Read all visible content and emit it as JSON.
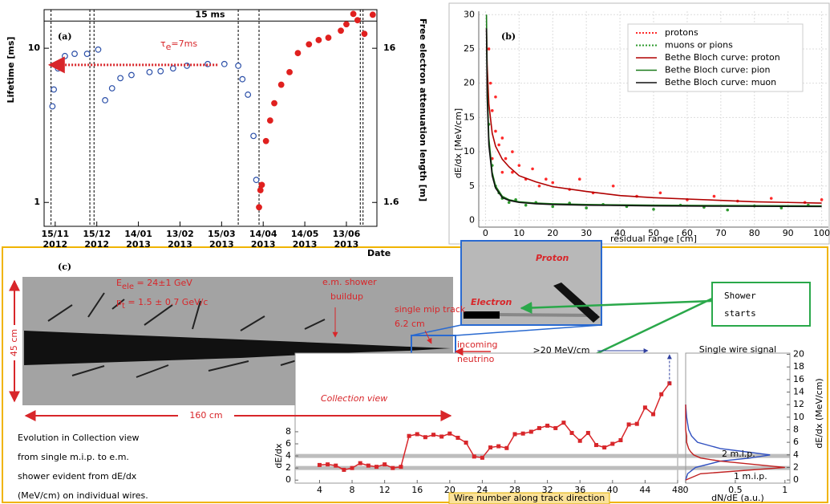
{
  "chart_data": [
    {
      "type": "scatter",
      "panel": "(a)",
      "ylabel": "Lifetime [ms]",
      "y2label": "Free electron attenuation length [m]",
      "xlabel": "Date",
      "log": true,
      "xlim": [
        -8,
        232
      ],
      "ylim": [
        0.7,
        17.8
      ],
      "y2lim": [
        1.12,
        28.5
      ],
      "xticks": [
        {
          "value": 0,
          "label": "15/11",
          "year": "2012"
        },
        {
          "value": 30,
          "label": "15/12",
          "year": "2012"
        },
        {
          "value": 60,
          "label": "14/01",
          "year": "2013"
        },
        {
          "value": 90,
          "label": "13/02",
          "year": "2013"
        },
        {
          "value": 120,
          "label": "15/03",
          "year": "2013"
        },
        {
          "value": 150,
          "label": "14/04",
          "year": "2013"
        },
        {
          "value": 180,
          "label": "14/05",
          "year": "2013"
        },
        {
          "value": 210,
          "label": "13/06",
          "year": "2013"
        }
      ],
      "yticks": [
        1,
        10
      ],
      "y2ticks": [
        1.6,
        16
      ],
      "vlines": [
        -3,
        25,
        28,
        132,
        147,
        220,
        222
      ],
      "hline": {
        "value": 15,
        "label": "15 ms"
      },
      "arrow": {
        "y": 7.8,
        "x": [
          117,
          -4
        ],
        "label": {
          "symbol": "τ",
          "sub": "e",
          "rest": "=7ms"
        }
      },
      "series": [
        {
          "color": "#2b4fa8",
          "marker": "open",
          "x": [
            -2,
            -1,
            2,
            7,
            14,
            23,
            31,
            36,
            41,
            47,
            55,
            68,
            76,
            85,
            95,
            110,
            122,
            132,
            135,
            139,
            143,
            145
          ],
          "values": [
            4.2,
            5.4,
            7.4,
            8.9,
            9.2,
            9.2,
            9.8,
            4.6,
            5.5,
            6.4,
            6.7,
            7.0,
            7.1,
            7.4,
            7.7,
            7.9,
            7.9,
            7.7,
            6.3,
            5.0,
            2.7,
            1.4
          ]
        },
        {
          "color": "#e0201f",
          "marker": "filled",
          "x": [
            147,
            148,
            149,
            152,
            155,
            158,
            163,
            169,
            175,
            183,
            190,
            197,
            206,
            210,
            215,
            218,
            223,
            229
          ],
          "values": [
            0.93,
            1.2,
            1.3,
            2.5,
            3.4,
            4.4,
            5.8,
            7.0,
            9.3,
            10.6,
            11.3,
            11.7,
            13.0,
            14.3,
            16.7,
            15.2,
            12.4,
            16.5
          ]
        }
      ]
    },
    {
      "type": "scatter",
      "panel": "(b)",
      "xlabel": "residual range [cm]",
      "ylabel": "dE/dx [MeV/cm]",
      "grid": true,
      "legend": "upper right",
      "xlim": [
        -2,
        102
      ],
      "ylim": [
        -1,
        30.5
      ],
      "xticks": [
        0,
        10,
        20,
        30,
        40,
        50,
        60,
        70,
        80,
        90,
        100
      ],
      "yticks": [
        0,
        5,
        10,
        15,
        20,
        25,
        30
      ],
      "series": [
        {
          "name": "protons",
          "color": "#ff2a2a",
          "style": "dots",
          "x": [
            1,
            1.5,
            2,
            2,
            3,
            3,
            4,
            5,
            5,
            6,
            8,
            8,
            10,
            12,
            14,
            16,
            18,
            20,
            25,
            28,
            32,
            38,
            45,
            52,
            60,
            68,
            75,
            85,
            95,
            100
          ],
          "values": [
            25,
            20,
            16,
            9,
            13,
            18,
            11,
            12,
            7,
            9,
            10,
            7,
            8,
            6,
            7.5,
            5,
            6,
            5.5,
            4.5,
            6,
            4,
            5,
            3.5,
            4,
            3,
            3.5,
            2.8,
            3.2,
            2.6,
            3
          ]
        },
        {
          "name": "muons or pions",
          "color": "#2e9a2e",
          "style": "dots",
          "x": [
            1,
            2,
            3,
            4,
            5,
            7,
            9,
            12,
            15,
            20,
            25,
            30,
            35,
            42,
            50,
            58,
            65,
            72,
            80,
            88,
            96
          ],
          "values": [
            14,
            8,
            5,
            4,
            3.2,
            2.6,
            3,
            2.2,
            2.6,
            2,
            2.5,
            1.8,
            2.3,
            2,
            1.6,
            2.2,
            1.9,
            1.5,
            2.1,
            1.8,
            2.2
          ]
        },
        {
          "name": "Bethe Bloch curve: proton",
          "color": "#b00000",
          "style": "line",
          "x": [
            0.3,
            0.5,
            1,
            2,
            3,
            5,
            7,
            10,
            15,
            20,
            30,
            40,
            50,
            60,
            70,
            80,
            90,
            100
          ],
          "values": [
            28,
            22.7,
            17,
            12.7,
            10.8,
            8.9,
            7.8,
            6.5,
            5.6,
            4.9,
            4.2,
            3.6,
            3.3,
            3.1,
            2.9,
            2.7,
            2.6,
            2.5
          ]
        },
        {
          "name": "Bethe Bloch curve: pion",
          "color": "#1a7a1a",
          "style": "line",
          "x": [
            0.3,
            0.5,
            1,
            2,
            3,
            5,
            7,
            10,
            15,
            20,
            30,
            50,
            70,
            100
          ],
          "values": [
            30,
            20,
            12,
            7,
            5,
            3.5,
            3,
            2.7,
            2.5,
            2.4,
            2.3,
            2.2,
            2.15,
            2.1
          ]
        },
        {
          "name": "Bethe Bloch curve: muon",
          "color": "#111111",
          "style": "line",
          "x": [
            0.3,
            0.5,
            1,
            2,
            3,
            5,
            7,
            10,
            15,
            20,
            30,
            50,
            70,
            100
          ],
          "values": [
            28,
            18,
            11,
            6.5,
            4.7,
            3.3,
            2.9,
            2.6,
            2.4,
            2.3,
            2.2,
            2.1,
            2.05,
            2.0
          ]
        }
      ]
    },
    {
      "type": "line",
      "xlabel": "Wire number along track direction",
      "ylabel": "dE/dx",
      "top_label": ">20 MeV/cm",
      "xlim": [
        1,
        48
      ],
      "ylim": [
        -0.5,
        21
      ],
      "xticks": [
        4,
        8,
        12,
        16,
        20,
        24,
        28,
        32,
        36,
        40,
        44,
        48
      ],
      "yticks": [
        0,
        2,
        4,
        6,
        8
      ],
      "hlines": [
        2,
        4
      ],
      "series": [
        {
          "color": "#d8262a",
          "x": [
            4,
            5,
            6,
            7,
            8,
            9,
            10,
            11,
            12,
            13,
            14,
            15,
            16,
            17,
            18,
            19,
            20,
            21,
            22,
            23,
            24,
            25,
            26,
            27,
            28,
            29,
            30,
            31,
            32,
            33,
            34,
            35,
            36,
            37,
            38,
            39,
            40,
            41,
            42,
            43,
            44,
            45,
            46,
            47
          ],
          "values": [
            2.5,
            2.6,
            2.4,
            1.7,
            2.0,
            2.8,
            2.4,
            2.2,
            2.6,
            2.0,
            2.2,
            7.3,
            7.6,
            7.1,
            7.5,
            7.2,
            7.7,
            7.0,
            6.2,
            3.9,
            3.7,
            5.4,
            5.6,
            5.3,
            7.6,
            7.7,
            8.0,
            8.6,
            9.0,
            8.6,
            9.5,
            7.8,
            6.5,
            7.8,
            5.8,
            5.4,
            6.0,
            6.6,
            9.2,
            9.3,
            12.0,
            10.9,
            14.2,
            16.0
          ]
        }
      ]
    },
    {
      "type": "line",
      "title": "Single wire signal",
      "xlabel": "dN/dE (a.u.)",
      "ylabel": "dE/dx (MeV/cm)",
      "xlim": [
        0,
        1.05
      ],
      "ylim": [
        -0.5,
        20.2
      ],
      "xticks": [
        0,
        0.5,
        1
      ],
      "yticks": [
        0,
        2,
        4,
        6,
        8,
        10,
        12,
        14,
        16,
        18,
        20
      ],
      "dEdx": [
        0,
        1,
        2,
        3,
        3.5,
        4,
        4.5,
        5,
        6,
        7,
        8,
        10,
        12
      ],
      "series": [
        {
          "name": "2 m.i.p.",
          "color": "#3050c0",
          "values": [
            0,
            0.02,
            0.1,
            0.35,
            0.65,
            0.85,
            0.6,
            0.35,
            0.12,
            0.06,
            0.03,
            0.01,
            0
          ]
        },
        {
          "name": "1 m.i.p.",
          "color": "#c02020",
          "values": [
            0,
            0.15,
            1.0,
            0.35,
            0.15,
            0.08,
            0.05,
            0.03,
            0.01,
            0.01,
            0,
            0,
            0
          ]
        }
      ]
    }
  ],
  "panel_c": {
    "label": "(c)",
    "energy": {
      "symbol": "E",
      "sub": "ele",
      "rest": " = 24±1 GeV"
    },
    "momentum": {
      "symbol": "p",
      "sub": "t",
      "rest": " = 1.5 ± 0.7 GeV/c"
    },
    "shower": [
      "e.m. shower",
      "buildup"
    ],
    "mip": [
      "single mip track",
      "6.2 cm"
    ],
    "incoming": [
      "incoming",
      "neutrino"
    ],
    "view": "Collection view",
    "height": "45 cm",
    "length": "160 cm",
    "zoom": {
      "proton": "Proton",
      "electron": "Electron"
    },
    "callout": [
      "Shower",
      "starts"
    ],
    "caption": [
      "Evolution in Collection view",
      "from single m.i.p. to e.m.",
      "shower evident from dE/dx",
      "(MeV/cm) on individual wires."
    ]
  }
}
